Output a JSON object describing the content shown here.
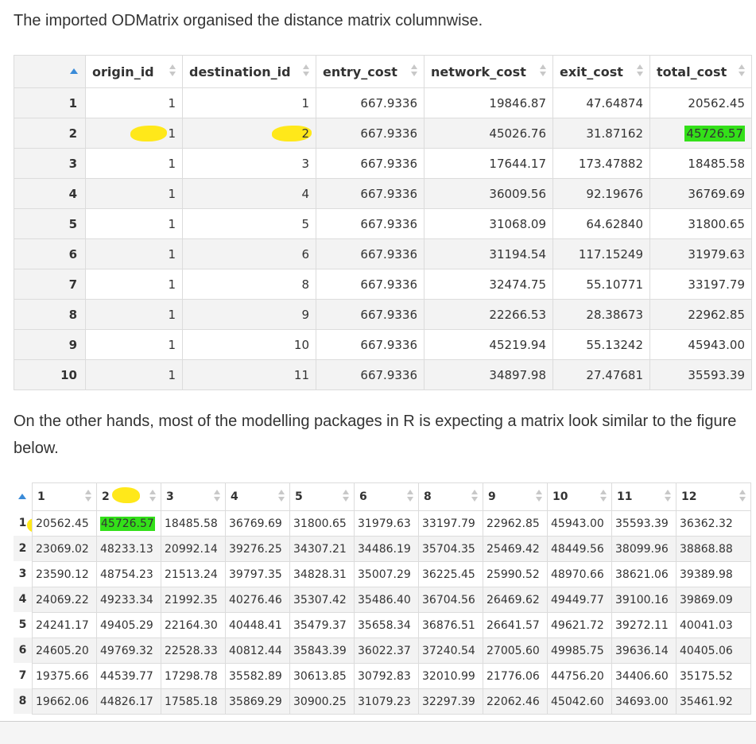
{
  "intro_text": "The imported ODMatrix organised the distance matrix columnwise.",
  "table1": {
    "headers": [
      "origin_id",
      "destination_id",
      "entry_cost",
      "network_cost",
      "exit_cost",
      "total_cost"
    ],
    "rows": [
      [
        "1",
        "1",
        "1",
        "667.9336",
        "19846.87",
        "47.64874",
        "20562.45"
      ],
      [
        "2",
        "1",
        "2",
        "667.9336",
        "45026.76",
        "31.87162",
        "45726.57"
      ],
      [
        "3",
        "1",
        "3",
        "667.9336",
        "17644.17",
        "173.47882",
        "18485.58"
      ],
      [
        "4",
        "1",
        "4",
        "667.9336",
        "36009.56",
        "92.19676",
        "36769.69"
      ],
      [
        "5",
        "1",
        "5",
        "667.9336",
        "31068.09",
        "64.62840",
        "31800.65"
      ],
      [
        "6",
        "1",
        "6",
        "667.9336",
        "31194.54",
        "117.15249",
        "31979.63"
      ],
      [
        "7",
        "1",
        "8",
        "667.9336",
        "32474.75",
        "55.10771",
        "33197.79"
      ],
      [
        "8",
        "1",
        "9",
        "667.9336",
        "22266.53",
        "28.38673",
        "22962.85"
      ],
      [
        "9",
        "1",
        "10",
        "667.9336",
        "45219.94",
        "55.13242",
        "45943.00"
      ],
      [
        "10",
        "1",
        "11",
        "667.9336",
        "34897.98",
        "27.47681",
        "35593.39"
      ]
    ]
  },
  "middle_text": "On the other hands, most of the modelling packages in R is expecting a matrix look similar to the figure below.",
  "table2": {
    "headers": [
      "1",
      "2",
      "3",
      "4",
      "5",
      "6",
      "8",
      "9",
      "10",
      "11",
      "12"
    ],
    "rows": [
      {
        "label": "1",
        "values": [
          "20562.45",
          "45726.57",
          "18485.58",
          "36769.69",
          "31800.65",
          "31979.63",
          "33197.79",
          "22962.85",
          "45943.00",
          "35593.39",
          "36362.32"
        ]
      },
      {
        "label": "2",
        "values": [
          "23069.02",
          "48233.13",
          "20992.14",
          "39276.25",
          "34307.21",
          "34486.19",
          "35704.35",
          "25469.42",
          "48449.56",
          "38099.96",
          "38868.88"
        ]
      },
      {
        "label": "3",
        "values": [
          "23590.12",
          "48754.23",
          "21513.24",
          "39797.35",
          "34828.31",
          "35007.29",
          "36225.45",
          "25990.52",
          "48970.66",
          "38621.06",
          "39389.98"
        ]
      },
      {
        "label": "4",
        "values": [
          "24069.22",
          "49233.34",
          "21992.35",
          "40276.46",
          "35307.42",
          "35486.40",
          "36704.56",
          "26469.62",
          "49449.77",
          "39100.16",
          "39869.09"
        ]
      },
      {
        "label": "5",
        "values": [
          "24241.17",
          "49405.29",
          "22164.30",
          "40448.41",
          "35479.37",
          "35658.34",
          "36876.51",
          "26641.57",
          "49621.72",
          "39272.11",
          "40041.03"
        ]
      },
      {
        "label": "6",
        "values": [
          "24605.20",
          "49769.32",
          "22528.33",
          "40812.44",
          "35843.39",
          "36022.37",
          "37240.54",
          "27005.60",
          "49985.75",
          "39636.14",
          "40405.06"
        ]
      },
      {
        "label": "7",
        "values": [
          "19375.66",
          "44539.77",
          "17298.78",
          "35582.89",
          "30613.85",
          "30792.83",
          "32010.99",
          "21776.06",
          "44756.20",
          "34406.60",
          "35175.52"
        ]
      },
      {
        "label": "8",
        "values": [
          "19662.06",
          "44826.17",
          "17585.18",
          "35869.29",
          "30900.25",
          "31079.23",
          "32297.39",
          "22062.46",
          "45042.60",
          "34693.00",
          "35461.92"
        ]
      }
    ]
  },
  "highlights": {
    "yellow": "#ffe81a",
    "green": "#33e019",
    "sort_active": "#3a8bd8"
  }
}
